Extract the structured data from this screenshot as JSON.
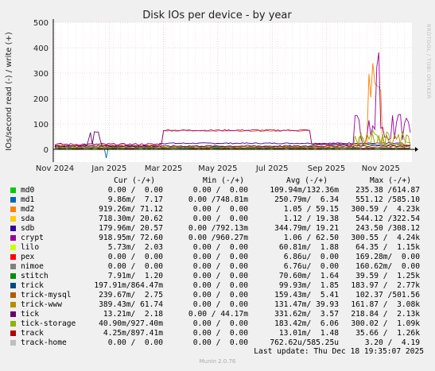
{
  "chart_data": {
    "type": "line",
    "title": "Disk IOs per device - by year",
    "ylabel": "IOs/second read (-) / write (+)",
    "ylim": [
      -50,
      500
    ],
    "y_ticks": [
      "500",
      "400",
      "300",
      "200",
      "100",
      "0"
    ],
    "y_tick_values": [
      500,
      400,
      300,
      200,
      100,
      0
    ],
    "x_ticks": [
      "Nov 2024",
      "Jan 2025",
      "Mar 2025",
      "May 2025",
      "Jul 2025",
      "Sep 2025",
      "Nov 2025"
    ],
    "grid": true,
    "watermark": "RRDTOOL / TOBI OETIKER",
    "columns": {
      "cur": "Cur (-/+)",
      "min": "Min (-/+)",
      "avg": "Avg (-/+)",
      "max": "Max (-/+)"
    },
    "series": [
      {
        "name": "md0",
        "color": "#00cc00",
        "cur": "0.00 /  0.00",
        "min": "0.00 /  0.00",
        "avg": "109.94m/132.36m",
        "max": "235.38 /614.87"
      },
      {
        "name": "md1",
        "color": "#0066b3",
        "cur": "9.86m/  7.17",
        "min": "0.00 /748.81m",
        "avg": "250.79m/  6.34",
        "max": "551.12 /585.10"
      },
      {
        "name": "md2",
        "color": "#ff8000",
        "cur": "919.26m/ 71.12",
        "min": "0.00 /  0.00",
        "avg": "1.05 / 59.15",
        "max": "300.59 /  4.23k"
      },
      {
        "name": "sda",
        "color": "#ffcc00",
        "cur": "718.30m/ 20.62",
        "min": "0.00 /  0.00",
        "avg": "1.12 / 19.38",
        "max": "544.12 /322.54"
      },
      {
        "name": "sdb",
        "color": "#330099",
        "cur": "179.96m/ 20.57",
        "min": "0.00 /792.13m",
        "avg": "344.79m/ 19.21",
        "max": "243.50 /308.12"
      },
      {
        "name": "crypt",
        "color": "#990099",
        "cur": "918.95m/ 72.60",
        "min": "0.00 /960.27m",
        "avg": "1.06 / 62.50",
        "max": "300.55 /  4.24k"
      },
      {
        "name": "lilo",
        "color": "#ccff00",
        "cur": "5.73m/  2.03",
        "min": "0.00 /  0.00",
        "avg": "60.81m/  1.88",
        "max": "64.35 /  1.15k"
      },
      {
        "name": "pex",
        "color": "#ff0000",
        "cur": "0.00 /  0.00",
        "min": "0.00 /  0.00",
        "avg": "6.86u/  0.00",
        "max": "169.28m/  0.00"
      },
      {
        "name": "nimoe",
        "color": "#808080",
        "cur": "0.00 /  0.00",
        "min": "0.00 /  0.00",
        "avg": "6.76u/  0.00",
        "max": "160.62m/  0.00"
      },
      {
        "name": "stitch",
        "color": "#008f00",
        "cur": "7.91m/  1.20",
        "min": "0.00 /  0.00",
        "avg": "70.60m/  1.64",
        "max": "39.59 /  1.25k"
      },
      {
        "name": "trick",
        "color": "#00487d",
        "cur": "197.91m/864.47m",
        "min": "0.00 /  0.00",
        "avg": "99.93m/  1.85",
        "max": "183.97 /  2.77k"
      },
      {
        "name": "trick-mysql",
        "color": "#b35a00",
        "cur": "239.67m/  2.75",
        "min": "0.00 /  0.00",
        "avg": "159.43m/  5.41",
        "max": "102.37 /501.56"
      },
      {
        "name": "trick-www",
        "color": "#b38f00",
        "cur": "389.43m/ 61.74",
        "min": "0.00 /  0.00",
        "avg": "131.47m/ 39.93",
        "max": "161.87 /  3.08k"
      },
      {
        "name": "tick",
        "color": "#6b006b",
        "cur": "13.21m/  2.18",
        "min": "0.00 / 44.17m",
        "avg": "331.62m/  3.57",
        "max": "218.84 /  2.13k"
      },
      {
        "name": "tick-storage",
        "color": "#8fb300",
        "cur": "40.90m/927.40m",
        "min": "0.00 /  0.00",
        "avg": "183.42m/  6.06",
        "max": "300.02 /  1.09k"
      },
      {
        "name": "track",
        "color": "#b30000",
        "cur": "4.25m/897.41m",
        "min": "0.00 /  0.00",
        "avg": "13.01m/  1.48",
        "max": "35.66 /  1.26k"
      },
      {
        "name": "track-home",
        "color": "#bebebe",
        "cur": "0.00 /  0.00",
        "min": "0.00 /  0.00",
        "avg": "762.62u/585.25u",
        "max": "3.20 /  4.19"
      }
    ]
  },
  "footer": {
    "last_update": "Last update: Thu Dec 18 19:35:07 2025",
    "munin": "Munin 2.0.76"
  }
}
